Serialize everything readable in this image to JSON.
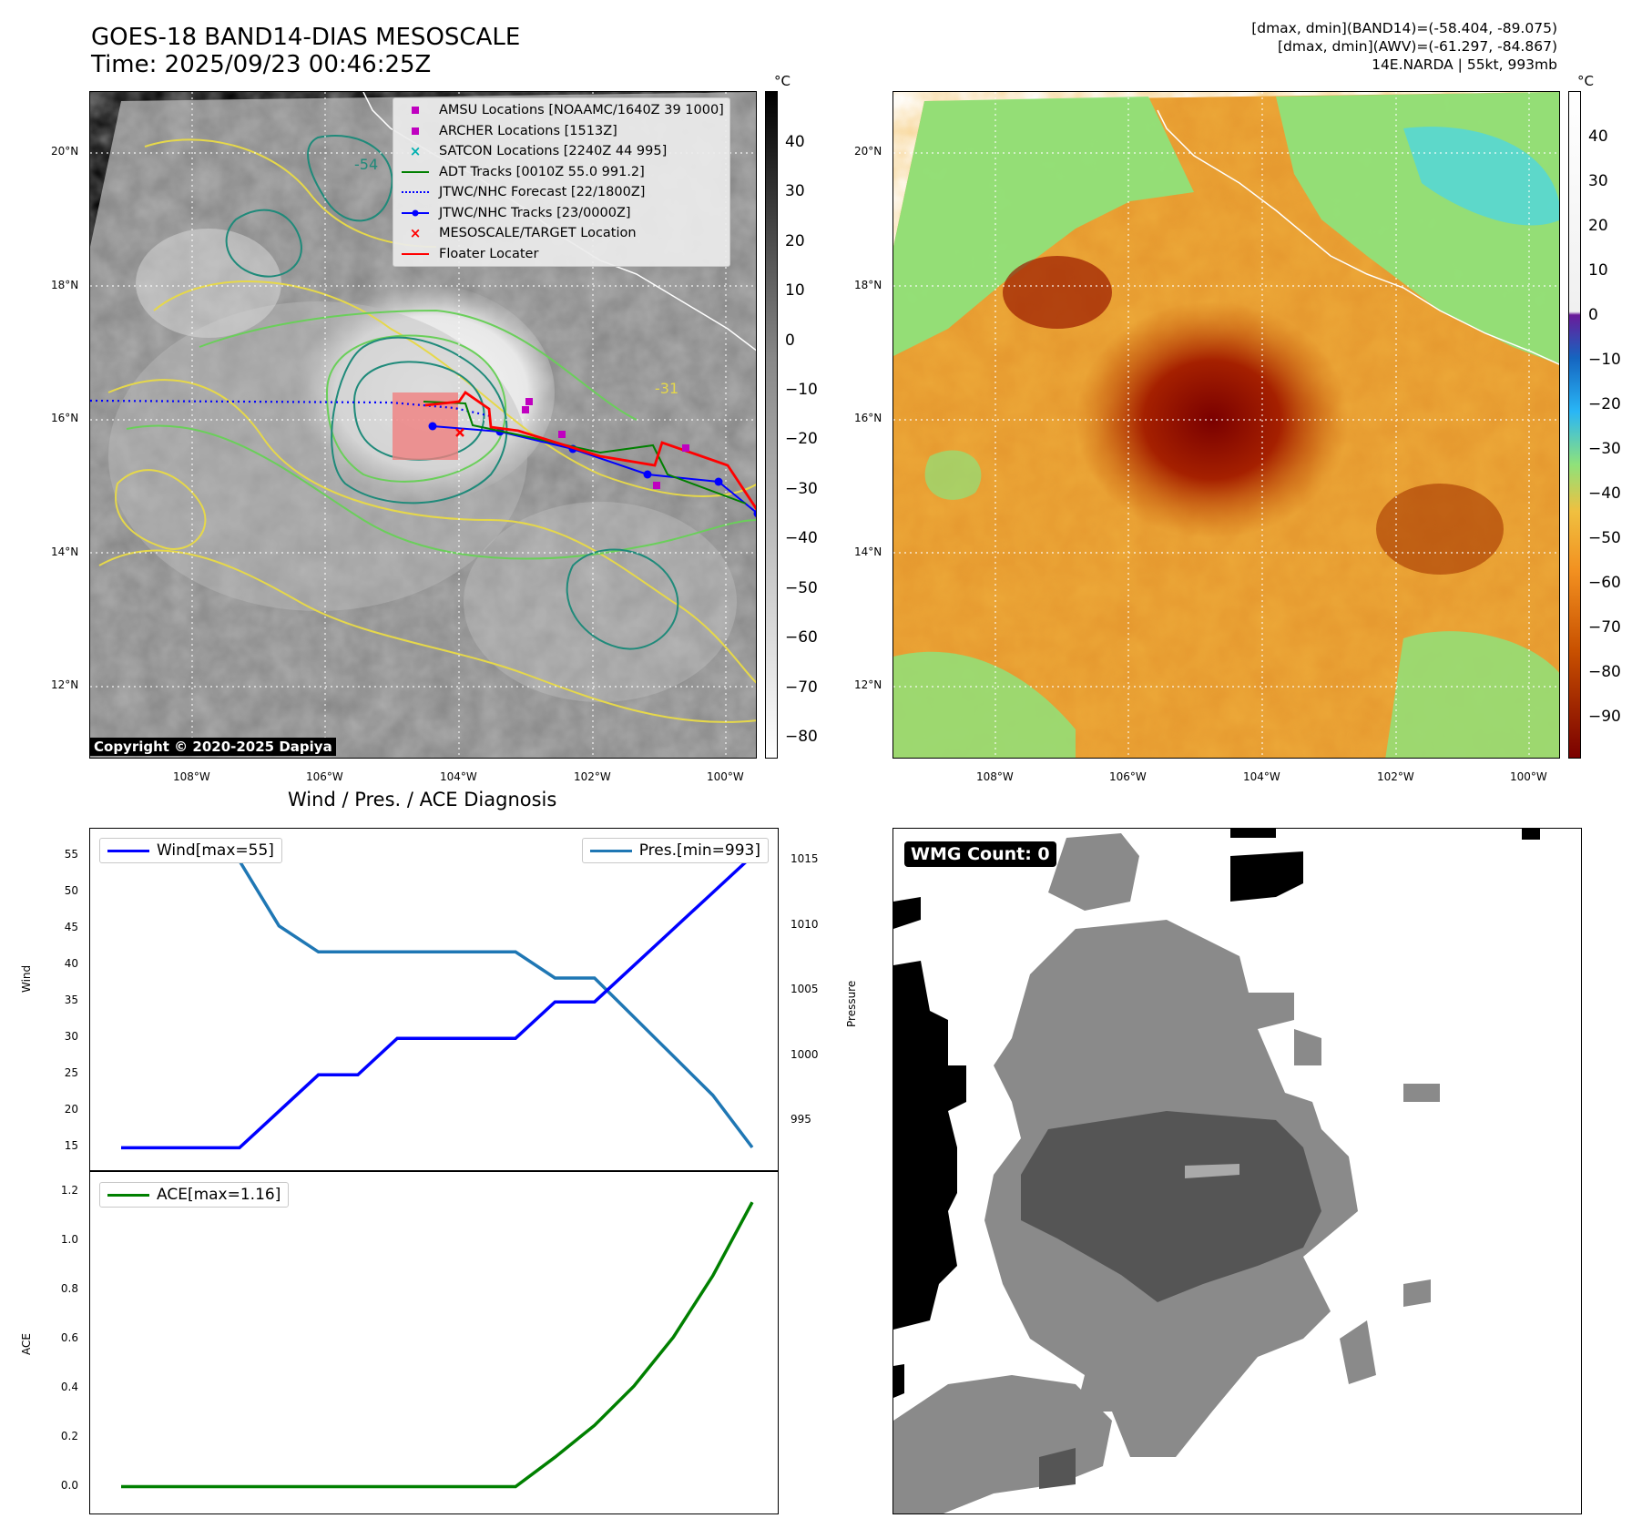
{
  "header": {
    "title_line1": "GOES-18 BAND14-DIAS MESOSCALE",
    "title_line2": "Time: 2025/09/23 00:46:25Z",
    "stat_line1": "[dmax, dmin](BAND14)=(-58.404, -89.075)",
    "stat_line2": "[dmax, dmin](AWV)=(-61.297, -84.867)",
    "stat_line3": "14E.NARDA | 55kt, 993mb"
  },
  "map": {
    "lat_labels": [
      "20°N",
      "18°N",
      "16°N",
      "14°N",
      "12°N"
    ],
    "lon_labels": [
      "108°W",
      "106°W",
      "104°W",
      "102°W",
      "100°W"
    ],
    "copyright": "Copyright © 2020-2025 Dapiya",
    "contour_labels": [
      "-54",
      "-31"
    ],
    "legend": [
      {
        "label": "AMSU Locations [NOAAMC/1640Z 39 1000]",
        "icon": "square-marker",
        "color": "#c000c0"
      },
      {
        "label": "ARCHER Locations [1513Z]",
        "icon": "square-marker",
        "color": "#c000c0"
      },
      {
        "label": "SATCON Locations [2240Z 44 995]",
        "icon": "x-marker",
        "color": "#00b0b0"
      },
      {
        "label": "ADT Tracks [0010Z 55.0 991.2]",
        "icon": "solid-line",
        "color": "#008000"
      },
      {
        "label": "JTWC/NHC Forecast [22/1800Z]",
        "icon": "dotted-line",
        "color": "#0000ff"
      },
      {
        "label": "JTWC/NHC Tracks [23/0000Z]",
        "icon": "line-dot",
        "color": "#0000ff"
      },
      {
        "label": "MESOSCALE/TARGET Location",
        "icon": "x-marker",
        "color": "#ff0000"
      },
      {
        "label": "Floater Locater",
        "icon": "solid-line",
        "color": "#ff0000"
      }
    ]
  },
  "colorbar_left": {
    "unit": "°C",
    "ticks": [
      "40",
      "30",
      "20",
      "10",
      "0",
      "−10",
      "−20",
      "−30",
      "−40",
      "−50",
      "−60",
      "−70",
      "−80"
    ]
  },
  "colorbar_right": {
    "unit": "°C",
    "ticks": [
      "40",
      "30",
      "20",
      "10",
      "0",
      "−10",
      "−20",
      "−30",
      "−40",
      "−50",
      "−60",
      "−70",
      "−80",
      "−90"
    ]
  },
  "diag": {
    "title": "Wind / Pres. / ACE Diagnosis",
    "wind_ylabel": "Wind",
    "pres_ylabel": "Pressure",
    "ace_ylabel": "ACE",
    "wind_legend": "Wind[max=55]",
    "pres_legend": "Pres.[min=993]",
    "ace_legend": "ACE[max=1.16]",
    "wind_ticks": [
      "55",
      "50",
      "45",
      "40",
      "35",
      "30",
      "25",
      "20",
      "15"
    ],
    "pres_ticks": [
      "1015",
      "1010",
      "1005",
      "1000",
      "995"
    ],
    "ace_ticks": [
      "1.2",
      "1.0",
      "0.8",
      "0.6",
      "0.4",
      "0.2",
      "0.0"
    ]
  },
  "wmg": {
    "label": "WMG Count: 0"
  },
  "chart_data": [
    {
      "type": "line",
      "title": "Wind / Pres. / ACE Diagnosis",
      "ylabel": "Wind",
      "ylabel_right": "Pressure",
      "x": [
        0,
        1,
        2,
        3,
        4,
        5,
        6,
        7,
        8,
        9,
        10,
        11,
        12,
        13,
        14,
        15,
        16,
        17,
        18
      ],
      "series": [
        {
          "name": "Wind[max=55]",
          "color": "#0000ff",
          "values": [
            15,
            15,
            15,
            15,
            20,
            25,
            25,
            25,
            30,
            30,
            30,
            30,
            35,
            35,
            40,
            45,
            50,
            55,
            null
          ],
          "ylim": [
            14,
            56.5
          ]
        },
        {
          "name": "Pres.[min=993]",
          "color": "#1f77b4",
          "values": [
            1015,
            1015,
            1015,
            1015,
            1010,
            1008,
            1008,
            1008,
            1008,
            1008,
            1008,
            1008,
            1006,
            1006,
            1003,
            1000,
            997,
            993,
            null
          ],
          "ylim": [
            992.3,
            1016
          ]
        }
      ]
    },
    {
      "type": "line",
      "ylabel": "ACE",
      "series": [
        {
          "name": "ACE[max=1.16]",
          "color": "#008000",
          "values": [
            0,
            0,
            0,
            0,
            0,
            0,
            0,
            0,
            0,
            0,
            0,
            0.12,
            0.25,
            0.41,
            0.61,
            0.86,
            1.16
          ],
          "ylim": [
            -0.05,
            1.2
          ]
        }
      ]
    }
  ]
}
